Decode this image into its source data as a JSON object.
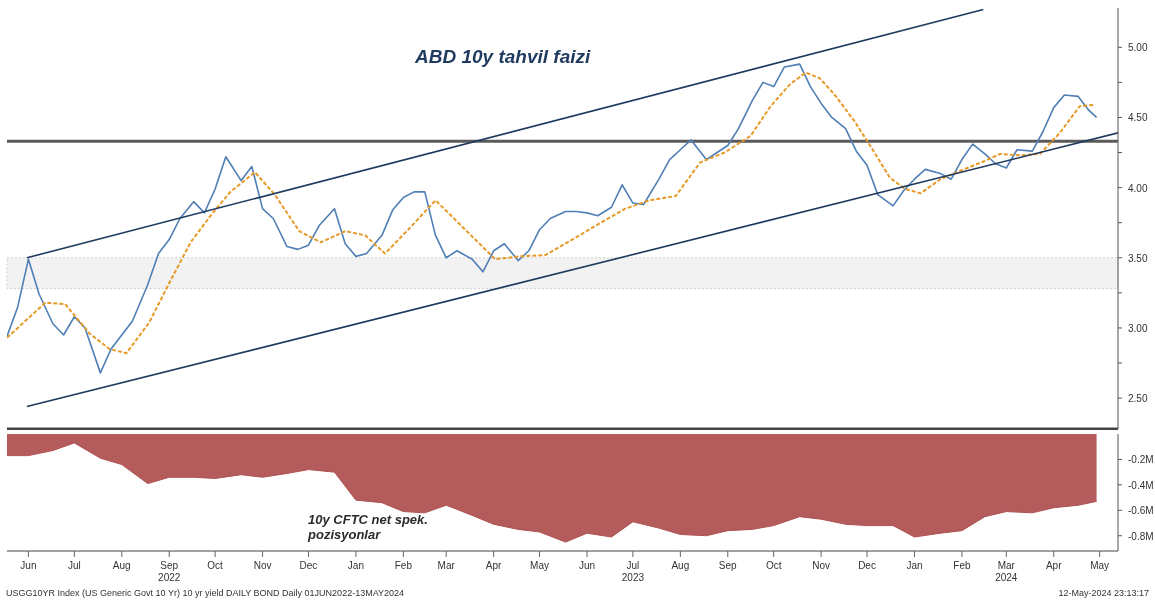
{
  "chart_data": [
    {
      "type": "line",
      "title": "ABD 10y tahvil faizi",
      "tick_labels": "y",
      "xlim": [
        "2022-06-01",
        "2024-05-27"
      ],
      "ylim": [
        2.28,
        5.28
      ],
      "yticks": [
        {
          "value": 2.5,
          "label": "2.50"
        },
        {
          "value": 2.75,
          "label": null
        },
        {
          "value": 3,
          "label": "3.00"
        },
        {
          "value": 3.25,
          "label": null
        },
        {
          "value": 3.5,
          "label": "3.50"
        },
        {
          "value": 3.75,
          "label": null
        },
        {
          "value": 4,
          "label": "4.00"
        },
        {
          "value": 4.25,
          "label": null
        },
        {
          "value": 4.5,
          "label": "4.50"
        },
        {
          "value": 4.75,
          "label": null
        },
        {
          "value": 5,
          "label": "5.00"
        }
      ],
      "ref_lines": [
        {
          "axis": "y",
          "value": 4.33,
          "color": "#5a5a5a"
        }
      ],
      "bands": [
        {
          "axis": "y",
          "from": 3.28,
          "to": 3.5,
          "color": "#f2f2f2"
        }
      ],
      "series": [
        {
          "color": "#4f7fb5",
          "line_style": "solid",
          "x": [
            "2022-06-01",
            "2022-06-08",
            "2022-06-15",
            "2022-06-22",
            "2022-07-01",
            "2022-07-08",
            "2022-07-15",
            "2022-07-22",
            "2022-08-01",
            "2022-08-08",
            "2022-08-15",
            "2022-08-22",
            "2022-09-01",
            "2022-09-08",
            "2022-09-15",
            "2022-09-22",
            "2022-10-01",
            "2022-10-08",
            "2022-10-15",
            "2022-10-22",
            "2022-11-01",
            "2022-11-08",
            "2022-11-15",
            "2022-11-22",
            "2022-12-01",
            "2022-12-08",
            "2022-12-15",
            "2022-12-22",
            "2023-01-01",
            "2023-01-08",
            "2023-01-15",
            "2023-01-22",
            "2023-02-01",
            "2023-02-08",
            "2023-02-15",
            "2023-02-22",
            "2023-03-01",
            "2023-03-08",
            "2023-03-15",
            "2023-03-22",
            "2023-04-01",
            "2023-04-08",
            "2023-04-15",
            "2023-04-22",
            "2023-05-01",
            "2023-05-08",
            "2023-05-15",
            "2023-05-22",
            "2023-06-01",
            "2023-06-08",
            "2023-06-15",
            "2023-06-22",
            "2023-07-01",
            "2023-07-08",
            "2023-07-15",
            "2023-07-22",
            "2023-08-01",
            "2023-08-08",
            "2023-08-15",
            "2023-08-22",
            "2023-09-01",
            "2023-09-08",
            "2023-09-15",
            "2023-09-22",
            "2023-10-01",
            "2023-10-08",
            "2023-10-15",
            "2023-10-22",
            "2023-11-01",
            "2023-11-08",
            "2023-11-15",
            "2023-11-22",
            "2023-12-01",
            "2023-12-08",
            "2023-12-15",
            "2023-12-22",
            "2024-01-01",
            "2024-01-08",
            "2024-01-15",
            "2024-01-22",
            "2024-02-01",
            "2024-02-08",
            "2024-02-15",
            "2024-02-22",
            "2024-03-01",
            "2024-03-08",
            "2024-03-15",
            "2024-03-22",
            "2024-04-01",
            "2024-04-08",
            "2024-04-15",
            "2024-04-22",
            "2024-05-01",
            "2024-05-08",
            "2024-05-13"
          ],
          "values": [
            2.94,
            3.15,
            3.49,
            3.24,
            3.03,
            2.95,
            3.08,
            3.0,
            2.68,
            2.85,
            2.95,
            3.05,
            3.31,
            3.53,
            3.63,
            3.78,
            3.9,
            3.82,
            3.99,
            4.22,
            4.05,
            4.15,
            3.85,
            3.78,
            3.58,
            3.56,
            3.59,
            3.73,
            3.85,
            3.6,
            3.51,
            3.53,
            3.66,
            3.84,
            3.93,
            3.97,
            3.97,
            3.66,
            3.5,
            3.55,
            3.49,
            3.4,
            3.55,
            3.6,
            3.48,
            3.55,
            3.7,
            3.78,
            3.83,
            3.83,
            3.82,
            3.8,
            3.86,
            4.02,
            3.89,
            3.88,
            4.06,
            4.2,
            4.27,
            4.34,
            4.2,
            4.25,
            4.3,
            4.42,
            4.62,
            4.75,
            4.72,
            4.86,
            4.88,
            4.72,
            4.6,
            4.5,
            4.42,
            4.26,
            4.16,
            3.95,
            3.87,
            3.98,
            4.06,
            4.13,
            4.1,
            4.06,
            4.2,
            4.31,
            4.24,
            4.17,
            4.14,
            4.27,
            4.26,
            4.4,
            4.57,
            4.66,
            4.65,
            4.55,
            4.5
          ]
        },
        {
          "color": "#e69a28",
          "line_style": "dashed",
          "x": [
            "2022-06-01",
            "2022-06-26",
            "2022-07-09",
            "2022-07-25",
            "2022-08-07",
            "2022-08-18",
            "2022-09-02",
            "2022-09-15",
            "2022-09-29",
            "2022-10-12",
            "2022-10-25",
            "2022-11-10",
            "2022-11-23",
            "2022-12-09",
            "2022-12-23",
            "2023-01-08",
            "2023-01-21",
            "2023-02-03",
            "2023-02-19",
            "2023-03-08",
            "2023-03-21",
            "2023-04-03",
            "2023-04-16",
            "2023-05-02",
            "2023-05-19",
            "2023-06-07",
            "2023-06-24",
            "2023-07-10",
            "2023-07-26",
            "2023-08-12",
            "2023-08-28",
            "2023-09-13",
            "2023-09-30",
            "2023-10-13",
            "2023-10-26",
            "2023-11-05",
            "2023-11-14",
            "2023-11-24",
            "2023-12-07",
            "2023-12-17",
            "2023-12-30",
            "2024-01-09",
            "2024-01-19",
            "2024-02-01",
            "2024-02-14",
            "2024-03-01",
            "2024-03-11",
            "2024-03-24",
            "2024-04-06",
            "2024-04-19",
            "2024-05-02",
            "2024-05-12"
          ],
          "values": [
            2.93,
            3.18,
            3.17,
            2.96,
            2.85,
            2.82,
            3.04,
            3.32,
            3.61,
            3.8,
            3.97,
            4.11,
            3.95,
            3.69,
            3.61,
            3.69,
            3.66,
            3.53,
            3.71,
            3.91,
            3.77,
            3.63,
            3.49,
            3.51,
            3.52,
            3.64,
            3.75,
            3.85,
            3.91,
            3.94,
            4.18,
            4.25,
            4.37,
            4.58,
            4.74,
            4.82,
            4.78,
            4.66,
            4.47,
            4.3,
            4.07,
            3.99,
            3.96,
            4.06,
            4.12,
            4.19,
            4.24,
            4.23,
            4.24,
            4.39,
            4.58,
            4.59
          ]
        },
        {
          "color": "#1f3a5f",
          "line_style": "solid",
          "x": [
            "2022-06-14",
            "2024-02-29"
          ],
          "values": [
            3.5,
            5.27
          ]
        },
        {
          "color": "#1f3a5f",
          "line_style": "solid",
          "x": [
            "2022-06-14",
            "2024-05-27"
          ],
          "values": [
            2.44,
            4.39
          ]
        }
      ]
    },
    {
      "type": "area",
      "title": "10y CFTC net spek. pozisyonlar",
      "xlim": [
        "2022-06-01",
        "2024-05-27"
      ],
      "xticks": [
        {
          "value": "2022-06-15",
          "label": "Jun"
        },
        {
          "value": "2022-07-15",
          "label": "Jul"
        },
        {
          "value": "2022-08-15",
          "label": "Aug"
        },
        {
          "value": "2022-09-15",
          "label": "Sep\n2022"
        },
        {
          "value": "2022-10-15",
          "label": "Oct"
        },
        {
          "value": "2022-11-15",
          "label": "Nov"
        },
        {
          "value": "2022-12-15",
          "label": "Dec"
        },
        {
          "value": "2023-01-15",
          "label": "Jan"
        },
        {
          "value": "2023-02-15",
          "label": "Feb"
        },
        {
          "value": "2023-03-15",
          "label": "Mar"
        },
        {
          "value": "2023-04-15",
          "label": "Apr"
        },
        {
          "value": "2023-05-15",
          "label": "May"
        },
        {
          "value": "2023-06-15",
          "label": "Jun"
        },
        {
          "value": "2023-07-15",
          "label": "Jul\n2023"
        },
        {
          "value": "2023-08-15",
          "label": "Aug"
        },
        {
          "value": "2023-09-15",
          "label": "Sep"
        },
        {
          "value": "2023-10-15",
          "label": "Oct"
        },
        {
          "value": "2023-11-15",
          "label": "Nov"
        },
        {
          "value": "2023-12-15",
          "label": "Dec"
        },
        {
          "value": "2024-01-15",
          "label": "Jan"
        },
        {
          "value": "2024-02-15",
          "label": "Feb"
        },
        {
          "value": "2024-03-15",
          "label": "Mar\n2024"
        },
        {
          "value": "2024-04-15",
          "label": "Apr"
        },
        {
          "value": "2024-05-15",
          "label": "May"
        }
      ],
      "ylim": [
        -0.92,
        0
      ],
      "yticks": [
        {
          "value": -0.2,
          "label": "-0.2M"
        },
        {
          "value": -0.4,
          "label": "-0.4M"
        },
        {
          "value": -0.6,
          "label": "-0.6M"
        },
        {
          "value": -0.8,
          "label": "-0.8M"
        }
      ],
      "annotations": [
        "USGG10YR Index (US Generic Govt 10 Yr) 10 yr yield DAILY BOND  Daily 01JUN2022-13MAY2024",
        "12-May-2024 23:13:17"
      ],
      "series": [
        {
          "color": "#b05252",
          "x": [
            "2022-06-01",
            "2022-06-15",
            "2022-07-01",
            "2022-07-15",
            "2022-08-01",
            "2022-08-15",
            "2022-09-01",
            "2022-09-15",
            "2022-10-01",
            "2022-10-15",
            "2022-11-01",
            "2022-11-15",
            "2022-12-01",
            "2022-12-15",
            "2023-01-01",
            "2023-01-15",
            "2023-02-01",
            "2023-02-15",
            "2023-03-01",
            "2023-03-15",
            "2023-04-01",
            "2023-04-15",
            "2023-05-01",
            "2023-05-15",
            "2023-06-01",
            "2023-06-15",
            "2023-07-01",
            "2023-07-15",
            "2023-08-01",
            "2023-08-15",
            "2023-09-01",
            "2023-09-15",
            "2023-10-01",
            "2023-10-15",
            "2023-11-01",
            "2023-11-15",
            "2023-12-01",
            "2023-12-15",
            "2024-01-01",
            "2024-01-15",
            "2024-02-01",
            "2024-02-15",
            "2024-03-01",
            "2024-03-15",
            "2024-04-01",
            "2024-04-15",
            "2024-05-01",
            "2024-05-13"
          ],
          "values": [
            -0.17,
            -0.17,
            -0.13,
            -0.07,
            -0.19,
            -0.24,
            -0.39,
            -0.34,
            -0.34,
            -0.35,
            -0.32,
            -0.34,
            -0.31,
            -0.28,
            -0.3,
            -0.52,
            -0.54,
            -0.61,
            -0.62,
            -0.56,
            -0.64,
            -0.71,
            -0.75,
            -0.77,
            -0.85,
            -0.78,
            -0.81,
            -0.69,
            -0.74,
            -0.79,
            -0.8,
            -0.76,
            -0.75,
            -0.72,
            -0.65,
            -0.67,
            -0.71,
            -0.72,
            -0.72,
            -0.81,
            -0.78,
            -0.76,
            -0.65,
            -0.61,
            -0.62,
            -0.58,
            -0.56,
            -0.53
          ]
        }
      ]
    }
  ]
}
